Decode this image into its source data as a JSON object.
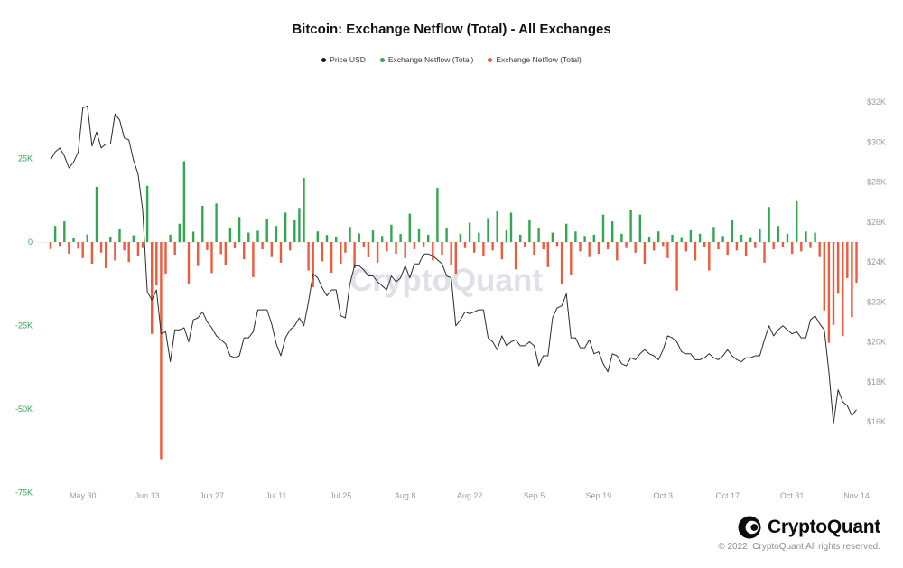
{
  "header": {
    "title": "Bitcoin: Exchange Netflow (Total) - All Exchanges"
  },
  "legend": [
    {
      "label": "Price USD",
      "color": "#1a1a1a"
    },
    {
      "label": "Exchange Netflow (Total)",
      "color": "#2fa84f"
    },
    {
      "label": "Exchange Netflow (Total)",
      "color": "#ee5a3a"
    }
  ],
  "watermark": "CryptoQuant",
  "footer": {
    "brand": "CryptoQuant",
    "copyright": "© 2022. CryptoQuant All rights reserved."
  },
  "chart_data": {
    "type": "bar+line",
    "title": "Bitcoin: Exchange Netflow (Total) - All Exchanges",
    "x_unit": "day",
    "x_start": "May 23",
    "x_end": "Nov 14",
    "grid": "off",
    "legend_position": "top-center",
    "watermark_color": "#e0e1e8",
    "x_ticks": [
      {
        "label": "May 30",
        "index": 7
      },
      {
        "label": "Jun 13",
        "index": 21
      },
      {
        "label": "Jun 27",
        "index": 35
      },
      {
        "label": "Jul 11",
        "index": 49
      },
      {
        "label": "Jul 25",
        "index": 63
      },
      {
        "label": "Aug 8",
        "index": 77
      },
      {
        "label": "Aug 22",
        "index": 91
      },
      {
        "label": "Sep 5",
        "index": 105
      },
      {
        "label": "Sep 19",
        "index": 119
      },
      {
        "label": "Oct 3",
        "index": 133
      },
      {
        "label": "Oct 17",
        "index": 147
      },
      {
        "label": "Oct 31",
        "index": 161
      },
      {
        "label": "Nov 14",
        "index": 175
      }
    ],
    "left_axis": {
      "unit": "BTC",
      "color": "#2fa84f",
      "range_kbtc": [
        -78,
        32
      ],
      "ticks": [
        {
          "label": "25K",
          "value": 25
        },
        {
          "label": "0",
          "value": 0
        },
        {
          "label": "-25K",
          "value": -25
        },
        {
          "label": "-50K",
          "value": -50
        },
        {
          "label": "-75K",
          "value": -75
        }
      ]
    },
    "right_axis": {
      "unit": "USD",
      "color": "#9b9b9b",
      "range_kusd": [
        15,
        33.5
      ],
      "ticks": [
        {
          "label": "$32K",
          "value_k": 32
        },
        {
          "label": "$30K",
          "value_k": 30
        },
        {
          "label": "$28K",
          "value_k": 28
        },
        {
          "label": "$26K",
          "value_k": 26
        },
        {
          "label": "$24K",
          "value_k": 24
        },
        {
          "label": "$22K",
          "value_k": 22
        },
        {
          "label": "$20K",
          "value_k": 20
        },
        {
          "label": "$18K",
          "value_k": 18
        },
        {
          "label": "$16K",
          "value_k": 16
        }
      ]
    },
    "series": [
      {
        "name": "Price USD",
        "type": "line",
        "color": "#2b2b2b",
        "unit": "kUSD",
        "values_kusd": [
          29.1,
          29.5,
          29.7,
          29.3,
          28.7,
          29.0,
          29.5,
          31.7,
          31.8,
          29.8,
          30.5,
          29.7,
          29.9,
          29.9,
          31.4,
          31.1,
          30.2,
          30.1,
          29.1,
          28.4,
          26.6,
          22.5,
          22.1,
          22.6,
          20.4,
          20.5,
          19.0,
          20.6,
          20.6,
          20.7,
          20.0,
          21.1,
          21.2,
          21.5,
          21.0,
          20.7,
          20.3,
          20.1,
          19.9,
          19.3,
          19.2,
          19.3,
          20.2,
          20.2,
          20.5,
          21.6,
          21.6,
          21.6,
          20.9,
          19.9,
          19.3,
          20.2,
          20.6,
          20.8,
          21.2,
          20.8,
          22.0,
          23.4,
          23.2,
          22.7,
          22.3,
          22.6,
          22.6,
          21.3,
          21.2,
          22.9,
          23.8,
          23.8,
          23.6,
          23.3,
          23.3,
          23.0,
          22.8,
          22.6,
          23.3,
          23.0,
          23.2,
          23.8,
          23.2,
          23.9,
          23.9,
          24.4,
          24.4,
          24.3,
          24.1,
          23.9,
          23.3,
          23.2,
          20.8,
          21.1,
          21.5,
          21.4,
          21.5,
          21.6,
          21.6,
          20.2,
          20.0,
          19.6,
          20.3,
          19.8,
          20.0,
          20.1,
          19.8,
          19.8,
          20.0,
          19.8,
          18.8,
          19.3,
          19.3,
          21.2,
          21.7,
          21.8,
          22.4,
          20.2,
          20.2,
          19.7,
          19.7,
          20.1,
          19.4,
          19.5,
          18.9,
          18.5,
          19.4,
          19.3,
          18.9,
          18.8,
          19.2,
          19.1,
          19.4,
          19.6,
          19.4,
          19.3,
          19.1,
          19.6,
          20.3,
          20.2,
          20.0,
          19.5,
          19.4,
          19.4,
          19.1,
          19.1,
          19.2,
          19.4,
          19.2,
          19.1,
          19.3,
          19.6,
          19.3,
          19.1,
          19.0,
          19.2,
          19.2,
          19.3,
          19.3,
          20.1,
          20.8,
          20.3,
          20.6,
          20.8,
          20.6,
          20.4,
          20.5,
          20.2,
          20.2,
          21.1,
          21.3,
          20.9,
          20.6,
          18.5,
          15.9,
          17.6,
          17.0,
          16.8,
          16.3,
          16.6
        ]
      },
      {
        "name": "Exchange Netflow (Total)",
        "type": "bar",
        "positive_color": "#2fa84f",
        "negative_color": "#ee5a3a",
        "unit": "kBTC",
        "values_kbtc": [
          -2.1,
          4.8,
          -1.2,
          6.2,
          -3.5,
          1.1,
          -2.0,
          -4.8,
          2.3,
          -6.5,
          16.5,
          -3.2,
          -7.8,
          1.5,
          -5.5,
          3.8,
          -2.5,
          -6.0,
          2.0,
          -4.2,
          -1.8,
          16.8,
          -27.5,
          -13.0,
          -65.0,
          -9.5,
          2.2,
          -3.8,
          5.5,
          24.2,
          -12.5,
          3.1,
          -7.2,
          10.8,
          -2.4,
          -9.3,
          11.5,
          -3.6,
          -6.8,
          4.2,
          -1.9,
          7.5,
          -5.2,
          2.8,
          -10.5,
          3.4,
          -2.2,
          6.8,
          -4.5,
          4.8,
          -6.2,
          8.8,
          -2.5,
          6.5,
          10.2,
          19.2,
          -8.5,
          -13.5,
          3.2,
          -5.8,
          2.1,
          -9.2,
          1.5,
          -6.5,
          -3.2,
          4.5,
          -7.8,
          2.6,
          -1.4,
          -4.6,
          3.5,
          -6.2,
          1.8,
          -2.8,
          5.2,
          -3.5,
          2.4,
          -4.8,
          8.5,
          -2.2,
          3.8,
          -1.5,
          2.2,
          -5.5,
          16.2,
          -3.8,
          4.2,
          -6.8,
          -9.5,
          2.5,
          -1.8,
          5.8,
          -3.2,
          2.8,
          -4.2,
          7.2,
          -2.5,
          9.2,
          -5.2,
          3.5,
          8.8,
          -8.2,
          2.2,
          -1.5,
          6.5,
          -3.8,
          4.2,
          -2.2,
          -7.5,
          2.8,
          -1.2,
          -12.5,
          5.5,
          -9.8,
          3.2,
          -2.8,
          1.8,
          -4.5,
          2.2,
          -3.5,
          8.2,
          -2.2,
          6.2,
          -5.5,
          2.5,
          -1.8,
          9.5,
          -3.2,
          8.2,
          -6.5,
          1.5,
          -2.5,
          3.2,
          -1.2,
          -4.8,
          2.2,
          -14.5,
          1.2,
          -2.8,
          3.5,
          -5.5,
          2.5,
          -1.5,
          -8.5,
          4.5,
          -2.2,
          1.8,
          -3.8,
          6.5,
          -2.5,
          2.2,
          -4.2,
          1.2,
          -1.8,
          3.8,
          -6.2,
          10.5,
          -2.2,
          4.8,
          -1.5,
          2.5,
          -3.5,
          12.2,
          -2.8,
          3.2,
          -1.8,
          2.8,
          -4.5,
          -20.5,
          -30.2,
          -24.8,
          -15.5,
          -28.2,
          -10.8,
          -22.5,
          -12.2
        ]
      }
    ]
  }
}
